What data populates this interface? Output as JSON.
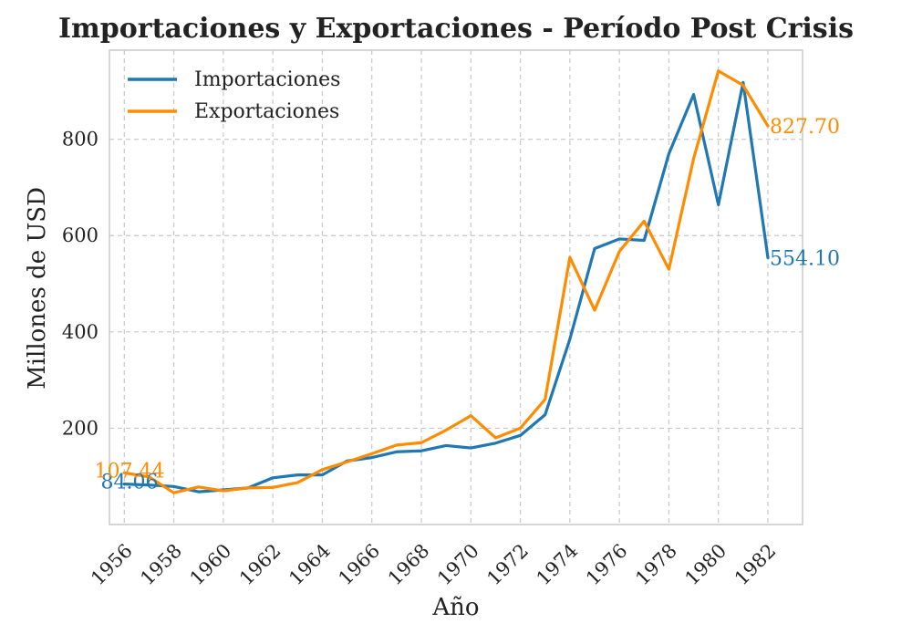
{
  "chart_data": {
    "type": "line",
    "title": "Importaciones y Exportaciones - Período Post Crisis",
    "xlabel": "Año",
    "ylabel": "Millones de USD",
    "x": [
      1956,
      1957,
      1958,
      1959,
      1960,
      1961,
      1962,
      1963,
      1964,
      1965,
      1966,
      1967,
      1968,
      1969,
      1970,
      1971,
      1972,
      1973,
      1974,
      1975,
      1976,
      1977,
      1978,
      1979,
      1980,
      1981,
      1982
    ],
    "x_ticks": [
      "1956",
      "1958",
      "1960",
      "1962",
      "1964",
      "1966",
      "1968",
      "1970",
      "1972",
      "1974",
      "1976",
      "1978",
      "1980",
      "1982"
    ],
    "y_ticks": [
      "200",
      "400",
      "600",
      "800"
    ],
    "xlim": [
      1955.4,
      1983.4
    ],
    "ylim": [
      0,
      985
    ],
    "grid": true,
    "legend_position": "top-left",
    "series": [
      {
        "name": "Importaciones",
        "color": "#1f77b4",
        "values": [
          84.06,
          82,
          79,
          68,
          72,
          76,
          97,
          103,
          103,
          132,
          139,
          151,
          153,
          164,
          159,
          169,
          185,
          228,
          385,
          573,
          593,
          590,
          770,
          893,
          664,
          918,
          554.1
        ],
        "end_labels": {
          "first": "84.06",
          "last": "554.10"
        }
      },
      {
        "name": "Exportaciones",
        "color": "#ff8c00",
        "values": [
          107.44,
          99,
          66,
          78,
          70,
          76,
          77,
          87,
          114,
          130,
          147,
          165,
          170,
          196,
          226,
          180,
          200,
          260,
          555,
          445,
          567,
          630,
          530,
          760,
          942,
          912,
          827.7
        ],
        "end_labels": {
          "first": "107.44",
          "last": "827.70"
        }
      }
    ]
  }
}
